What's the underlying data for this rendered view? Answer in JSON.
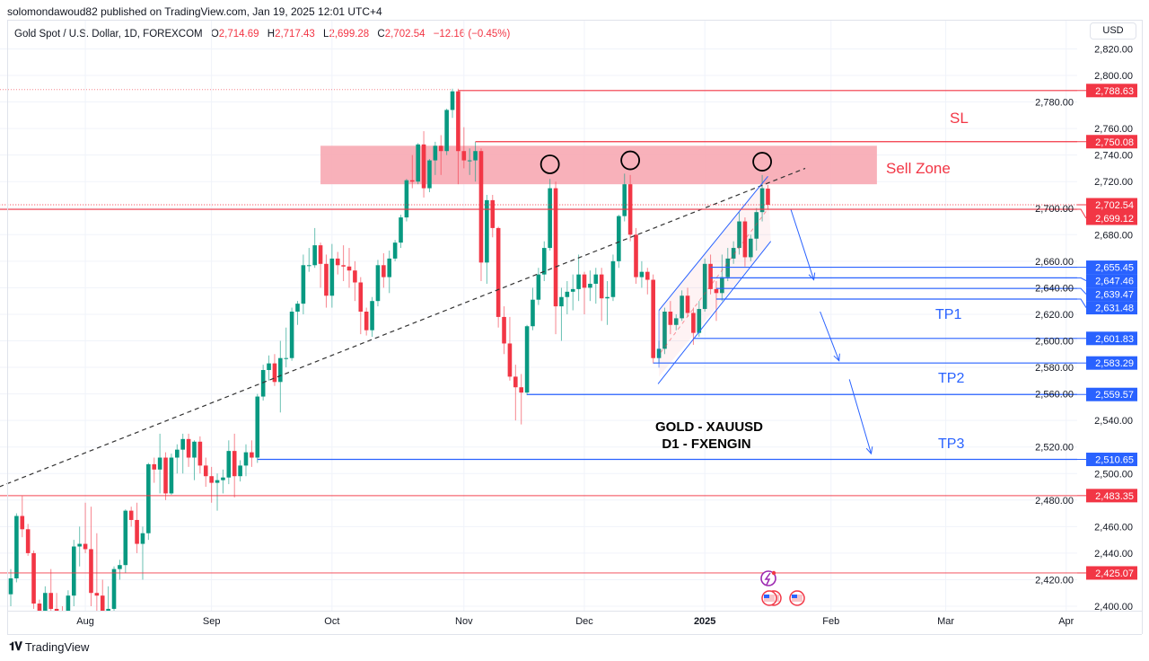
{
  "publisher": "solomondawoud82 published on TradingView.com, Jan 19, 2025 12:01 UTC+4",
  "legend": {
    "symbol": "Gold Spot / U.S. Dollar, 1D, FOREXCOM",
    "o_label": "O",
    "o": "2,714.69",
    "h_label": "H",
    "h": "2,717.43",
    "l_label": "L",
    "l": "2,699.28",
    "c_label": "C",
    "c": "2,702.54",
    "change": "−12.16 (−0.45%)"
  },
  "currency_button": "USD",
  "footer": {
    "logo": "TV",
    "brand": "TradingView"
  },
  "colors": {
    "up": "#089981",
    "down": "#f23645",
    "blue": "#2962ff",
    "zone": "#f7a9b3",
    "grid": "#f0f3fa"
  },
  "chart_data": {
    "type": "candlestick",
    "title": "Gold Spot / U.S. Dollar, 1D, FOREXCOM",
    "ylim": [
      2400,
      2830
    ],
    "price_ticks": [
      "2,400.00",
      "2,420.00",
      "2,440.00",
      "2,460.00",
      "2,480.00",
      "2,500.00",
      "2,520.00",
      "2,540.00",
      "2,560.00",
      "2,580.00",
      "2,600.00",
      "2,620.00",
      "2,640.00",
      "2,660.00",
      "2,680.00",
      "2,700.00",
      "2,720.00",
      "2,740.00",
      "2,760.00",
      "2,780.00",
      "2,800.00",
      "2,820.00"
    ],
    "x_ticks": [
      {
        "label": "Aug",
        "bar": 13
      },
      {
        "label": "Sep",
        "bar": 35
      },
      {
        "label": "Oct",
        "bar": 56
      },
      {
        "label": "Nov",
        "bar": 79
      },
      {
        "label": "Dec",
        "bar": 100
      },
      {
        "label": "2025",
        "bar": 121,
        "bold": true
      },
      {
        "label": "Feb",
        "bar": 143
      },
      {
        "label": "Mar",
        "bar": 163
      },
      {
        "label": "Apr",
        "bar": 184
      }
    ],
    "candles_ohlc_from_jul15": [
      [
        2409,
        2428,
        2400,
        2421
      ],
      [
        2421,
        2470,
        2418,
        2468
      ],
      [
        2468,
        2483,
        2452,
        2458
      ],
      [
        2458,
        2462,
        2438,
        2440
      ],
      [
        2440,
        2442,
        2398,
        2402
      ],
      [
        2402,
        2405,
        2380,
        2395
      ],
      [
        2395,
        2415,
        2388,
        2410
      ],
      [
        2410,
        2428,
        2392,
        2398
      ],
      [
        2398,
        2410,
        2385,
        2388
      ],
      [
        2388,
        2400,
        2380,
        2385
      ],
      [
        2385,
        2412,
        2383,
        2408
      ],
      [
        2408,
        2450,
        2400,
        2445
      ],
      [
        2445,
        2460,
        2430,
        2447
      ],
      [
        2447,
        2478,
        2440,
        2443
      ],
      [
        2443,
        2475,
        2400,
        2410
      ],
      [
        2410,
        2455,
        2395,
        2408
      ],
      [
        2408,
        2420,
        2385,
        2390
      ],
      [
        2390,
        2415,
        2385,
        2398
      ],
      [
        2398,
        2430,
        2394,
        2428
      ],
      [
        2428,
        2435,
        2420,
        2431
      ],
      [
        2431,
        2473,
        2425,
        2472
      ],
      [
        2472,
        2475,
        2460,
        2465
      ],
      [
        2465,
        2478,
        2440,
        2447
      ],
      [
        2447,
        2460,
        2420,
        2455
      ],
      [
        2455,
        2508,
        2450,
        2507
      ],
      [
        2507,
        2512,
        2493,
        2503
      ],
      [
        2503,
        2530,
        2485,
        2512
      ],
      [
        2512,
        2516,
        2480,
        2485
      ],
      [
        2485,
        2515,
        2484,
        2512
      ],
      [
        2512,
        2522,
        2500,
        2518
      ],
      [
        2518,
        2530,
        2500,
        2526
      ],
      [
        2526,
        2530,
        2505,
        2512
      ],
      [
        2512,
        2525,
        2495,
        2524
      ],
      [
        2524,
        2528,
        2500,
        2506
      ],
      [
        2506,
        2512,
        2490,
        2498
      ],
      [
        2498,
        2505,
        2478,
        2493
      ],
      [
        2493,
        2500,
        2472,
        2495
      ],
      [
        2495,
        2503,
        2485,
        2497
      ],
      [
        2497,
        2525,
        2492,
        2517
      ],
      [
        2517,
        2530,
        2482,
        2498
      ],
      [
        2498,
        2510,
        2494,
        2506
      ],
      [
        2506,
        2522,
        2498,
        2516
      ],
      [
        2516,
        2525,
        2505,
        2512
      ],
      [
        2512,
        2560,
        2508,
        2558
      ],
      [
        2558,
        2582,
        2555,
        2578
      ],
      [
        2578,
        2589,
        2570,
        2583
      ],
      [
        2583,
        2590,
        2566,
        2569
      ],
      [
        2569,
        2600,
        2546,
        2587
      ],
      [
        2587,
        2610,
        2580,
        2587
      ],
      [
        2587,
        2625,
        2585,
        2622
      ],
      [
        2622,
        2630,
        2612,
        2628
      ],
      [
        2628,
        2665,
        2620,
        2657
      ],
      [
        2657,
        2670,
        2652,
        2657
      ],
      [
        2657,
        2685,
        2655,
        2672
      ],
      [
        2672,
        2674,
        2640,
        2658
      ],
      [
        2658,
        2665,
        2625,
        2634
      ],
      [
        2634,
        2673,
        2625,
        2662
      ],
      [
        2662,
        2667,
        2650,
        2657
      ],
      [
        2657,
        2672,
        2645,
        2656
      ],
      [
        2656,
        2670,
        2640,
        2653
      ],
      [
        2653,
        2660,
        2630,
        2644
      ],
      [
        2644,
        2648,
        2605,
        2622
      ],
      [
        2622,
        2625,
        2604,
        2608
      ],
      [
        2608,
        2633,
        2603,
        2630
      ],
      [
        2630,
        2661,
        2626,
        2657
      ],
      [
        2657,
        2666,
        2640,
        2648
      ],
      [
        2648,
        2668,
        2636,
        2662
      ],
      [
        2662,
        2676,
        2660,
        2674
      ],
      [
        2674,
        2695,
        2670,
        2693
      ],
      [
        2693,
        2722,
        2690,
        2721
      ],
      [
        2721,
        2740,
        2715,
        2720
      ],
      [
        2720,
        2749,
        2718,
        2748
      ],
      [
        2748,
        2758,
        2708,
        2715
      ],
      [
        2715,
        2737,
        2712,
        2736
      ],
      [
        2736,
        2750,
        2725,
        2747
      ],
      [
        2747,
        2755,
        2725,
        2743
      ],
      [
        2743,
        2775,
        2740,
        2774
      ],
      [
        2774,
        2790,
        2768,
        2788
      ],
      [
        2788,
        2790,
        2718,
        2743
      ],
      [
        2743,
        2761,
        2730,
        2736
      ],
      [
        2736,
        2745,
        2725,
        2736
      ],
      [
        2736,
        2750,
        2720,
        2743
      ],
      [
        2743,
        2745,
        2645,
        2659
      ],
      [
        2659,
        2710,
        2643,
        2706
      ],
      [
        2706,
        2710,
        2678,
        2685
      ],
      [
        2685,
        2686,
        2610,
        2618
      ],
      [
        2618,
        2626,
        2590,
        2598
      ],
      [
        2598,
        2618,
        2570,
        2573
      ],
      [
        2573,
        2582,
        2540,
        2565
      ],
      [
        2565,
        2575,
        2537,
        2561
      ],
      [
        2561,
        2612,
        2559,
        2611
      ],
      [
        2611,
        2640,
        2608,
        2631
      ],
      [
        2631,
        2655,
        2627,
        2650
      ],
      [
        2650,
        2675,
        2645,
        2670
      ],
      [
        2670,
        2722,
        2668,
        2715
      ],
      [
        2715,
        2720,
        2605,
        2626
      ],
      [
        2626,
        2640,
        2600,
        2633
      ],
      [
        2633,
        2645,
        2620,
        2637
      ],
      [
        2637,
        2650,
        2623,
        2639
      ],
      [
        2639,
        2665,
        2630,
        2650
      ],
      [
        2650,
        2652,
        2620,
        2640
      ],
      [
        2640,
        2653,
        2630,
        2643
      ],
      [
        2643,
        2655,
        2628,
        2650
      ],
      [
        2650,
        2655,
        2615,
        2632
      ],
      [
        2632,
        2645,
        2612,
        2633
      ],
      [
        2633,
        2665,
        2630,
        2660
      ],
      [
        2660,
        2695,
        2655,
        2694
      ],
      [
        2694,
        2726,
        2690,
        2718
      ],
      [
        2718,
        2725,
        2675,
        2680
      ],
      [
        2680,
        2685,
        2643,
        2648
      ],
      [
        2648,
        2660,
        2640,
        2652
      ],
      [
        2652,
        2655,
        2635,
        2646
      ],
      [
        2646,
        2650,
        2583,
        2587
      ],
      [
        2587,
        2600,
        2583,
        2594
      ],
      [
        2594,
        2625,
        2590,
        2622
      ],
      [
        2622,
        2630,
        2605,
        2612
      ],
      [
        2612,
        2620,
        2608,
        2617
      ],
      [
        2617,
        2638,
        2615,
        2634
      ],
      [
        2634,
        2640,
        2618,
        2621
      ],
      [
        2621,
        2625,
        2597,
        2606
      ],
      [
        2606,
        2630,
        2603,
        2624
      ],
      [
        2624,
        2662,
        2622,
        2658
      ],
      [
        2658,
        2665,
        2635,
        2639
      ],
      [
        2639,
        2645,
        2615,
        2636
      ],
      [
        2636,
        2665,
        2630,
        2648
      ],
      [
        2648,
        2670,
        2645,
        2662
      ],
      [
        2662,
        2675,
        2658,
        2670
      ],
      [
        2670,
        2697,
        2665,
        2690
      ],
      [
        2690,
        2693,
        2656,
        2663
      ],
      [
        2663,
        2680,
        2660,
        2677
      ],
      [
        2677,
        2700,
        2668,
        2697
      ],
      [
        2697,
        2725,
        2690,
        2715
      ],
      [
        2714.69,
        2717.43,
        2699.28,
        2702.54
      ]
    ],
    "levels": [
      {
        "label": "2,788.63",
        "value": 2788.63,
        "color": "#f23645",
        "from_bar": 78
      },
      {
        "label": "2,750.08",
        "value": 2750.08,
        "color": "#f23645",
        "from_bar": 81
      },
      {
        "label": "2,702.54",
        "value": 2702.54,
        "color": "#f23645",
        "from_bar": -2,
        "dotted": true
      },
      {
        "label": "2,699.12",
        "value": 2699.12,
        "color": "#f23645",
        "from_bar": -2
      },
      {
        "label": "2,655.45",
        "value": 2655.45,
        "color": "#2962ff",
        "from_bar": 122
      },
      {
        "label": "2,647.46",
        "value": 2647.46,
        "color": "#2962ff",
        "from_bar": 122
      },
      {
        "label": "2,639.47",
        "value": 2639.47,
        "color": "#2962ff",
        "from_bar": 123
      },
      {
        "label": "2,631.48",
        "value": 2631.48,
        "color": "#2962ff",
        "from_bar": 123
      },
      {
        "label": "2,601.83",
        "value": 2601.83,
        "color": "#2962ff",
        "from_bar": 119
      },
      {
        "label": "2,583.29",
        "value": 2583.29,
        "color": "#2962ff",
        "from_bar": 112
      },
      {
        "label": "2,559.57",
        "value": 2559.57,
        "color": "#2962ff",
        "from_bar": 90
      },
      {
        "label": "2,510.65",
        "value": 2510.65,
        "color": "#2962ff",
        "from_bar": 43
      },
      {
        "label": "2,483.35",
        "value": 2483.35,
        "color": "#f23645",
        "from_bar": -2
      },
      {
        "label": "2,425.07",
        "value": 2425.07,
        "color": "#f23645",
        "from_bar": -2
      }
    ],
    "sell_zone": {
      "from_bar": 54,
      "to_bar": 151,
      "low": 2718,
      "high": 2747
    },
    "circles": [
      {
        "bar": 94,
        "price": 2733
      },
      {
        "bar": 108,
        "price": 2736
      },
      {
        "bar": 131,
        "price": 2735
      }
    ],
    "trendline": {
      "from": [
        -2,
        2490
      ],
      "to": [
        138.5,
        2730
      ]
    },
    "channel": {
      "upper": [
        [
          113,
          2623
        ],
        [
          132,
          2724
        ]
      ],
      "lower": [
        [
          113,
          2573
        ],
        [
          132.5,
          2675
        ]
      ]
    },
    "arrows": [
      [
        [
          136,
          2699
        ],
        [
          140,
          2646
        ]
      ],
      [
        [
          141.1,
          2622
        ],
        [
          144.4,
          2585
        ]
      ],
      [
        [
          146.2,
          2571
        ],
        [
          150,
          2515
        ]
      ]
    ],
    "annotations": {
      "sl": "SL",
      "sell_zone": "Sell Zone",
      "tp1": "TP1",
      "tp2": "TP2",
      "tp3": "TP3",
      "title_line1": "GOLD - XAUUSD",
      "title_line2": "D1 - FXENGIN"
    }
  }
}
